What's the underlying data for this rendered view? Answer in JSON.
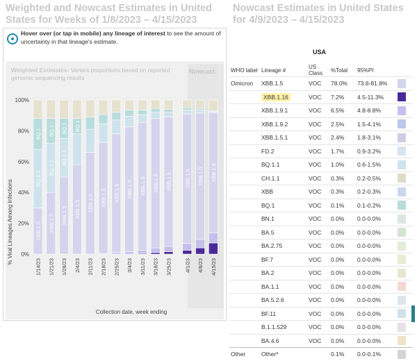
{
  "left_title": "Weighted and Nowcast Estimates in United States for Weeks of 1/8/2023 – 4/15/2023",
  "right_title": "Nowcast Estimates in United States for 4/9/2023 – 4/15/2023",
  "hover_note": {
    "bold": "Hover over (or tap in mobile) any lineage of interest",
    "rest": " to see the amount of uncertainty in that lineage's estimate."
  },
  "weighted": {
    "title_bold": "Weighted Estimates:",
    "title_rest": " Variant proportions based on reported genomic sequencing results"
  },
  "nowcast_label": "Nowcast:",
  "chart_data": {
    "type": "bar",
    "stacked": true,
    "ylabel": "% Viral Lineages Among Infections",
    "xlabel": "Collection date, week ending",
    "y_ticks": [
      "0%",
      "20%",
      "40%",
      "60%",
      "80%",
      "100%"
    ],
    "ylim": [
      0,
      100
    ],
    "categories": [
      "1/14/23",
      "1/21/23",
      "1/28/23",
      "2/4/23",
      "2/11/23",
      "2/18/23",
      "2/25/23",
      "3/4/23",
      "3/11/23",
      "3/18/23",
      "3/25/23",
      "4/1/23",
      "4/8/23",
      "4/15/23"
    ],
    "series": [
      {
        "name": "XBB.1.16",
        "color": "#4a2a9a",
        "values": [
          0,
          0,
          0,
          0,
          0,
          0,
          0,
          0,
          0.5,
          1,
          1.5,
          2.5,
          4,
          7.2
        ]
      },
      {
        "name": "XBB.1.9.1",
        "color": "#c3c0ec",
        "values": [
          0,
          0,
          0,
          0,
          0,
          0.5,
          1,
          1.5,
          2,
          3,
          3.5,
          4.5,
          5.5,
          6.5
        ]
      },
      {
        "name": "XBB.1.5",
        "color": "#d4d4ec",
        "values": [
          30,
          40,
          50,
          58,
          66,
          72,
          77,
          81,
          83,
          84,
          84,
          84,
          82,
          78
        ]
      },
      {
        "name": "BQ.1.1",
        "color": "#cfe3ec",
        "values": [
          38,
          32,
          25,
          20,
          15,
          12,
          9,
          7,
          5,
          4,
          3,
          2.5,
          2,
          1.0
        ]
      },
      {
        "name": "BQ.1",
        "color": "#b9dcdc",
        "values": [
          20,
          16,
          13,
          10,
          8,
          6,
          5,
          4,
          3,
          2.5,
          2,
          1.5,
          1,
          0.1
        ]
      },
      {
        "name": "Other",
        "color": "#e6e2cf",
        "values": [
          12,
          12,
          12,
          12,
          11,
          9.5,
          8,
          6.5,
          6.5,
          5.5,
          6,
          5,
          5.5,
          7.2
        ]
      }
    ],
    "bar_labels": [
      {
        "idx": 0,
        "labels": [
          "BQ.1",
          "BQ.1.1",
          "XBB.1.5"
        ]
      },
      {
        "idx": 1,
        "labels": [
          "BQ.1",
          "BQ.1.1",
          "XBB.1.5"
        ]
      },
      {
        "idx": 2,
        "labels": [
          "BQ.1",
          "BQ.1.1",
          "XBB.1.5"
        ]
      },
      {
        "idx": 3,
        "labels": [
          "BQ.1",
          "XBB.1.5"
        ]
      },
      {
        "idx": 4,
        "labels": [
          "XBB.1.5"
        ]
      },
      {
        "idx": 5,
        "labels": [
          "XBB.1.5"
        ]
      },
      {
        "idx": 6,
        "labels": [
          "XBB.1.5"
        ]
      },
      {
        "idx": 7,
        "labels": [
          "XBB.1.5"
        ]
      },
      {
        "idx": 8,
        "labels": [
          "XBB.1.5"
        ]
      },
      {
        "idx": 9,
        "labels": [
          "XBB.1.5"
        ]
      },
      {
        "idx": 10,
        "labels": [
          "XBB.1.5"
        ]
      },
      {
        "idx": 11,
        "labels": [
          "XBB.1.5"
        ]
      },
      {
        "idx": 12,
        "labels": [
          "XBB.1.5"
        ]
      },
      {
        "idx": 13,
        "labels": [
          "XBB.1.5"
        ]
      }
    ],
    "nowcast_start_index": 11
  },
  "table": {
    "region": "USA",
    "headers": [
      "WHO label",
      "Lineage #",
      "US Class",
      "%Total",
      "95%PI"
    ],
    "rows": [
      {
        "who": "Omicron",
        "lineage": "XBB.1.5",
        "cls": "VOC",
        "pct": "78.0%",
        "pi": "73.6-81.8%",
        "color": "#d4d4ec",
        "highlight": false
      },
      {
        "who": "",
        "lineage": "XBB.1.16",
        "cls": "VOC",
        "pct": "7.2%",
        "pi": "4.5-11.3%",
        "color": "#4a2a9a",
        "highlight": true
      },
      {
        "who": "",
        "lineage": "XBB.1.9.1",
        "cls": "VOC",
        "pct": "6.5%",
        "pi": "4.8-8.8%",
        "color": "#c3c0ec",
        "highlight": false
      },
      {
        "who": "",
        "lineage": "XBB.1.9.2",
        "cls": "VOC",
        "pct": "2.5%",
        "pi": "1.5-4.1%",
        "color": "#bdc5e8",
        "highlight": false
      },
      {
        "who": "",
        "lineage": "XBB.1.5.1",
        "cls": "VOC",
        "pct": "2.4%",
        "pi": "1.8-3.1%",
        "color": "#cfcde0",
        "highlight": false
      },
      {
        "who": "",
        "lineage": "FD.2",
        "cls": "VOC",
        "pct": "1.7%",
        "pi": "0.9-3.2%",
        "color": "#d9e2f0",
        "highlight": false
      },
      {
        "who": "",
        "lineage": "BQ.1.1",
        "cls": "VOC",
        "pct": "1.0%",
        "pi": "0.6-1.5%",
        "color": "#cfe3ec",
        "highlight": false
      },
      {
        "who": "",
        "lineage": "CH.1.1",
        "cls": "VOC",
        "pct": "0.3%",
        "pi": "0.2-0.5%",
        "color": "#dcdcc8",
        "highlight": false
      },
      {
        "who": "",
        "lineage": "XBB",
        "cls": "VOC",
        "pct": "0.3%",
        "pi": "0.2-0.3%",
        "color": "#cbd6ee",
        "highlight": false
      },
      {
        "who": "",
        "lineage": "BQ.1",
        "cls": "VOC",
        "pct": "0.1%",
        "pi": "0.1-0.2%",
        "color": "#b9dcdc",
        "highlight": false
      },
      {
        "who": "",
        "lineage": "BN.1",
        "cls": "VOC",
        "pct": "0.0%",
        "pi": "0.0-0.0%",
        "color": "#dce6e0",
        "highlight": false
      },
      {
        "who": "",
        "lineage": "BA.5",
        "cls": "VOC",
        "pct": "0.0%",
        "pi": "0.0-0.0%",
        "color": "#d6e3d4",
        "highlight": false
      },
      {
        "who": "",
        "lineage": "BA.2.75",
        "cls": "VOC",
        "pct": "0.0%",
        "pi": "0.0-0.0%",
        "color": "#e2ecd8",
        "highlight": false
      },
      {
        "who": "",
        "lineage": "BF.7",
        "cls": "VOC",
        "pct": "0.0%",
        "pi": "0.0-0.0%",
        "color": "#e7ecd4",
        "highlight": false
      },
      {
        "who": "",
        "lineage": "BA.2",
        "cls": "VOC",
        "pct": "0.0%",
        "pi": "0.0-0.0%",
        "color": "#e8e6d2",
        "highlight": false
      },
      {
        "who": "",
        "lineage": "BA.1.1",
        "cls": "VOC",
        "pct": "0.0%",
        "pi": "0.0-0.0%",
        "color": "#f2d8d0",
        "highlight": false
      },
      {
        "who": "",
        "lineage": "BA.5.2.6",
        "cls": "VOC",
        "pct": "0.0%",
        "pi": "0.0-0.0%",
        "color": "#dde6ec",
        "highlight": false
      },
      {
        "who": "",
        "lineage": "BF.11",
        "cls": "VOC",
        "pct": "0.0%",
        "pi": "0.0-0.0%",
        "color": "#d2e0ec",
        "highlight": false
      },
      {
        "who": "",
        "lineage": "B.1.1.529",
        "cls": "VOC",
        "pct": "0.0%",
        "pi": "0.0-0.0%",
        "color": "#e8dfe8",
        "highlight": false
      },
      {
        "who": "",
        "lineage": "BA.4.6",
        "cls": "VOC",
        "pct": "0.0%",
        "pi": "0.0-0.0%",
        "color": "#f0e2c8",
        "highlight": false
      }
    ],
    "other": {
      "who": "Other",
      "lineage": "Other*",
      "cls": "",
      "pct": "0.1%",
      "pi": "0.0-0.1%",
      "color": "#d4d4d4"
    }
  }
}
